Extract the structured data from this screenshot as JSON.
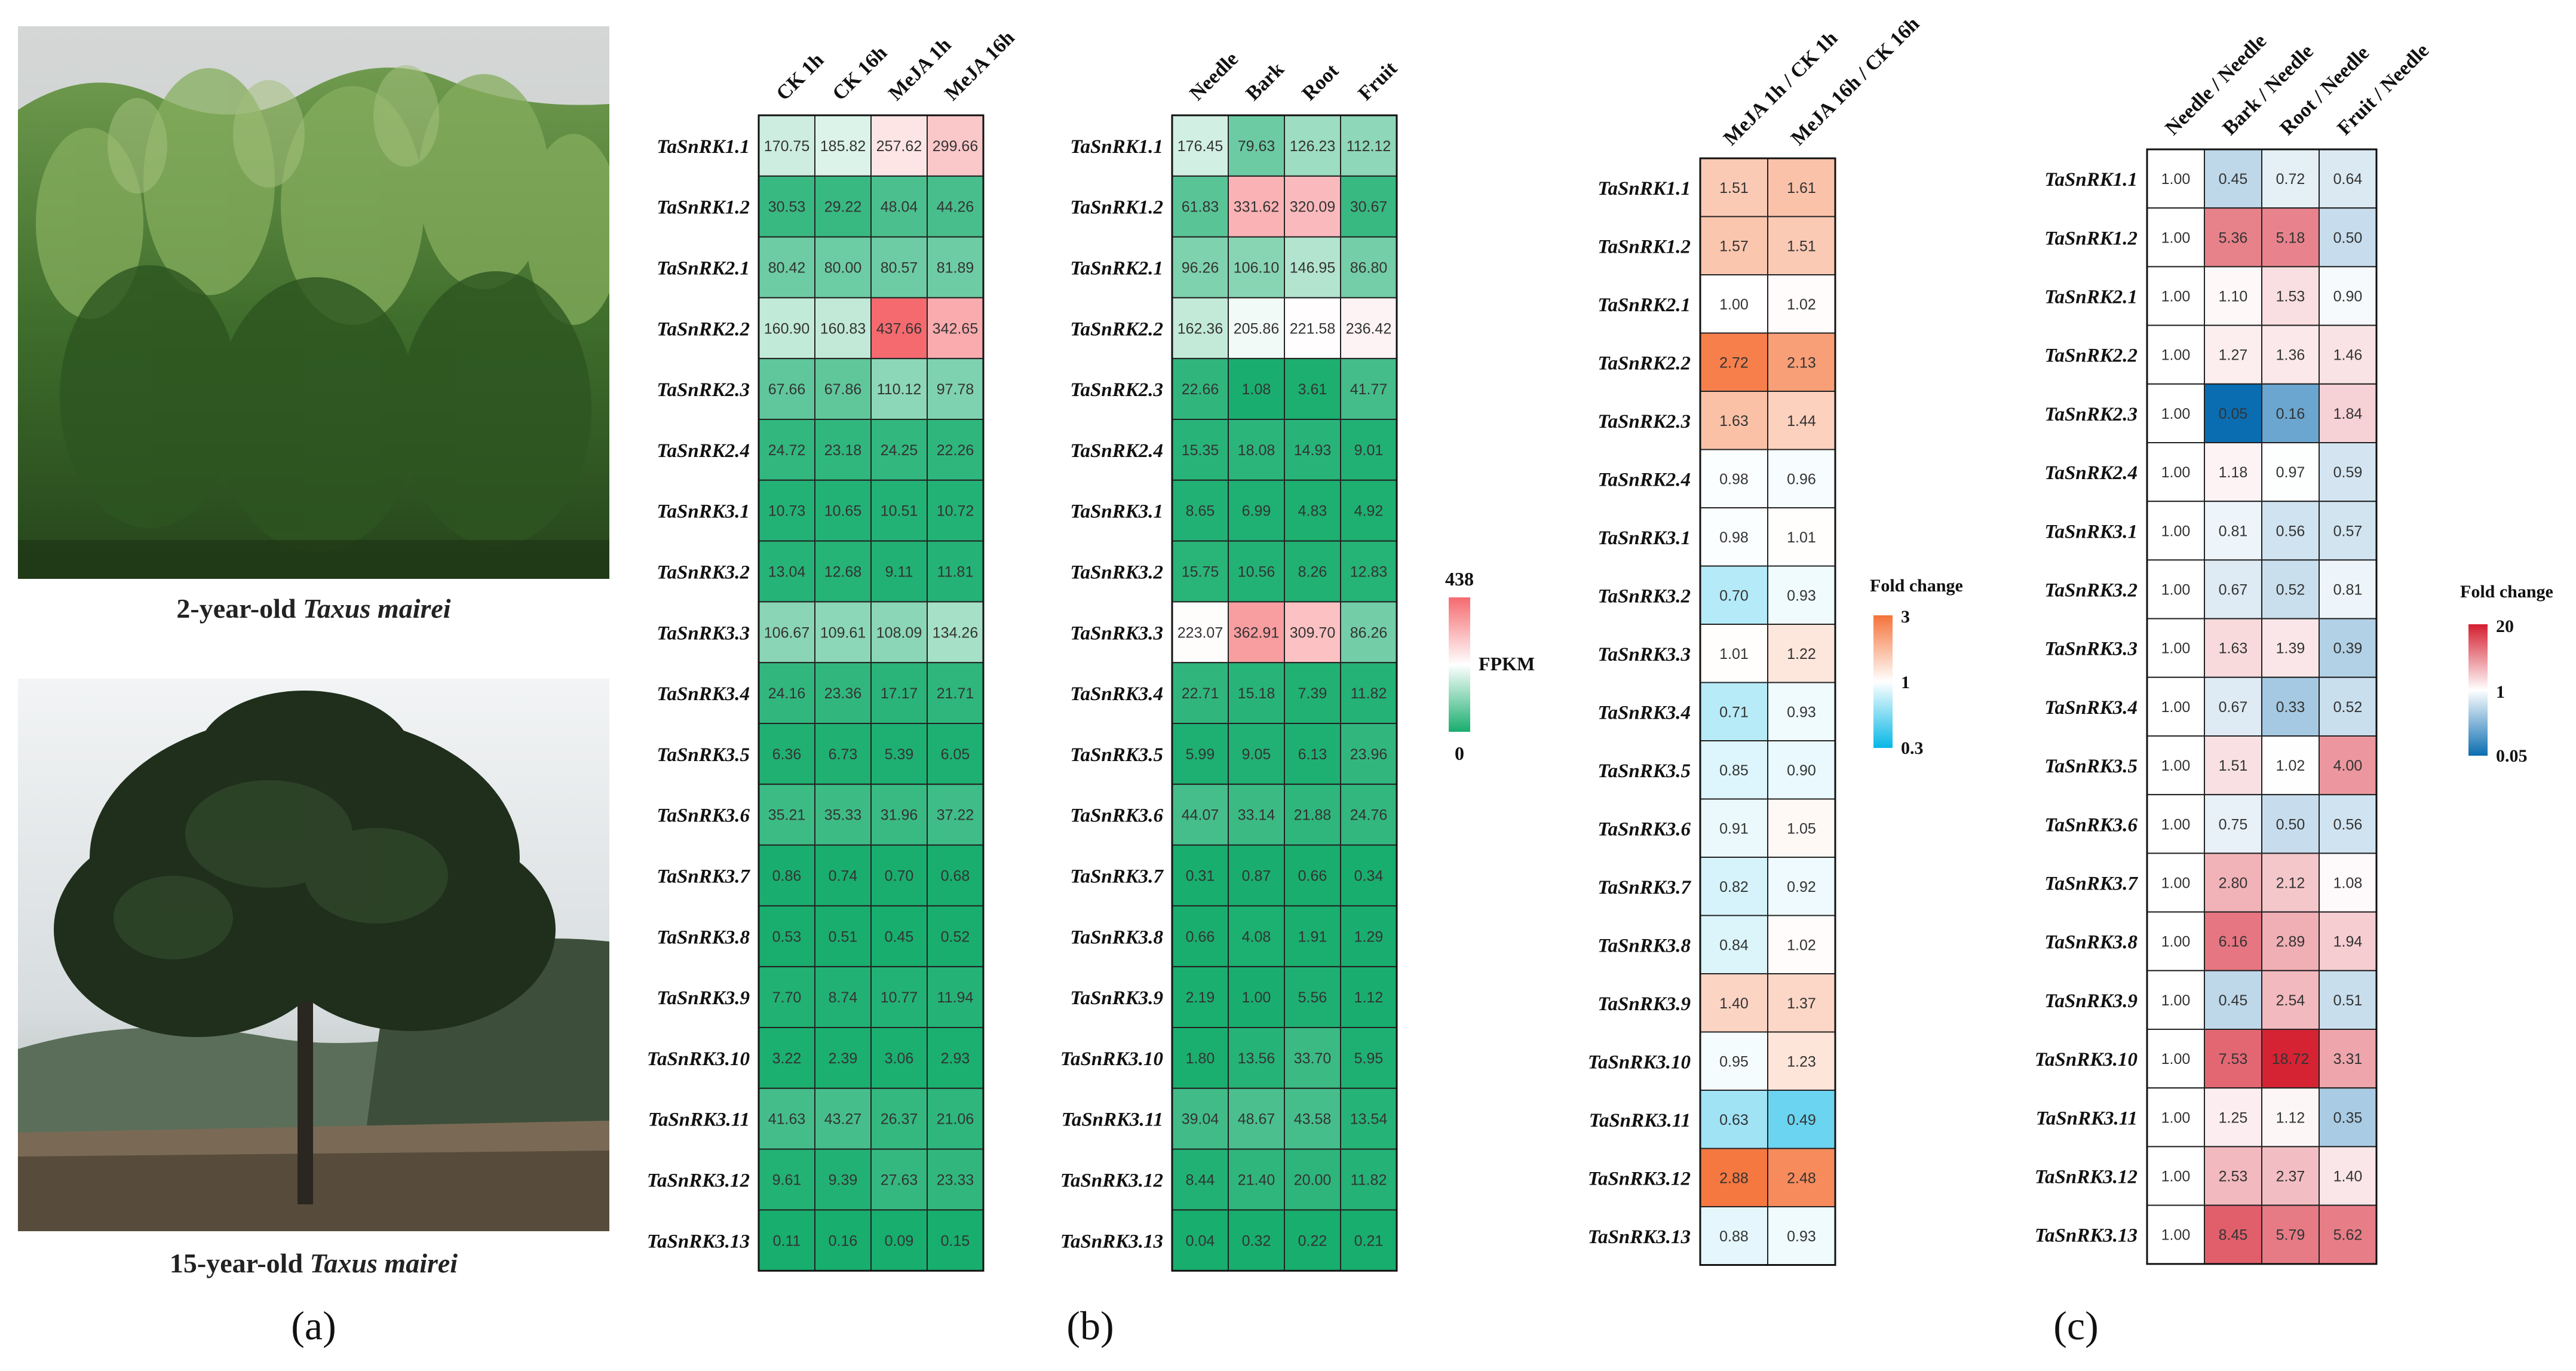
{
  "panel_a": {
    "label": "(a)",
    "photo_top": {
      "caption_prefix": "2-year-old ",
      "caption_species": "Taxus mairei"
    },
    "photo_bottom": {
      "caption_prefix": "15-year-old ",
      "caption_species": "Taxus mairei"
    }
  },
  "panel_b": {
    "label": "(b)"
  },
  "panel_c": {
    "label": "(c)"
  },
  "chart_data": [
    {
      "type": "heatmap",
      "id": "fpkm_mejA",
      "title": "",
      "columns": [
        "CK 1h",
        "CK 16h",
        "MeJA 1h",
        "MeJA 16h"
      ],
      "rows": [
        "TaSnRK1.1",
        "TaSnRK1.2",
        "TaSnRK2.1",
        "TaSnRK2.2",
        "TaSnRK2.3",
        "TaSnRK2.4",
        "TaSnRK3.1",
        "TaSnRK3.2",
        "TaSnRK3.3",
        "TaSnRK3.4",
        "TaSnRK3.5",
        "TaSnRK3.6",
        "TaSnRK3.7",
        "TaSnRK3.8",
        "TaSnRK3.9",
        "TaSnRK3.10",
        "TaSnRK3.11",
        "TaSnRK3.12",
        "TaSnRK3.13"
      ],
      "values": [
        [
          "170.75",
          "185.82",
          "257.62",
          "299.66"
        ],
        [
          "30.53",
          "29.22",
          "48.04",
          "44.26"
        ],
        [
          "80.42",
          "80.00",
          "80.57",
          "81.89"
        ],
        [
          "160.90",
          "160.83",
          "437.66",
          "342.65"
        ],
        [
          "67.66",
          "67.86",
          "110.12",
          "97.78"
        ],
        [
          "24.72",
          "23.18",
          "24.25",
          "22.26"
        ],
        [
          "10.73",
          "10.65",
          "10.51",
          "10.72"
        ],
        [
          "13.04",
          "12.68",
          "9.11",
          "11.81"
        ],
        [
          "106.67",
          "109.61",
          "108.09",
          "134.26"
        ],
        [
          "24.16",
          "23.36",
          "17.17",
          "21.71"
        ],
        [
          "6.36",
          "6.73",
          "5.39",
          "6.05"
        ],
        [
          "35.21",
          "35.33",
          "31.96",
          "37.22"
        ],
        [
          "0.86",
          "0.74",
          "0.70",
          "0.68"
        ],
        [
          "0.53",
          "0.51",
          "0.45",
          "0.52"
        ],
        [
          "7.70",
          "8.74",
          "10.77",
          "11.94"
        ],
        [
          "3.22",
          "2.39",
          "3.06",
          "2.93"
        ],
        [
          "41.63",
          "43.27",
          "26.37",
          "21.06"
        ],
        [
          "9.61",
          "9.39",
          "27.63",
          "23.33"
        ],
        [
          "0.11",
          "0.16",
          "0.09",
          "0.15"
        ]
      ]
    },
    {
      "type": "heatmap",
      "id": "fpkm_tissue",
      "title": "",
      "columns": [
        "Needle",
        "Bark",
        "Root",
        "Fruit"
      ],
      "rows": [
        "TaSnRK1.1",
        "TaSnRK1.2",
        "TaSnRK2.1",
        "TaSnRK2.2",
        "TaSnRK2.3",
        "TaSnRK2.4",
        "TaSnRK3.1",
        "TaSnRK3.2",
        "TaSnRK3.3",
        "TaSnRK3.4",
        "TaSnRK3.5",
        "TaSnRK3.6",
        "TaSnRK3.7",
        "TaSnRK3.8",
        "TaSnRK3.9",
        "TaSnRK3.10",
        "TaSnRK3.11",
        "TaSnRK3.12",
        "TaSnRK3.13"
      ],
      "values": [
        [
          "176.45",
          "79.63",
          "126.23",
          "112.12"
        ],
        [
          "61.83",
          "331.62",
          "320.09",
          "30.67"
        ],
        [
          "96.26",
          "106.10",
          "146.95",
          "86.80"
        ],
        [
          "162.36",
          "205.86",
          "221.58",
          "236.42"
        ],
        [
          "22.66",
          "1.08",
          "3.61",
          "41.77"
        ],
        [
          "15.35",
          "18.08",
          "14.93",
          "9.01"
        ],
        [
          "8.65",
          "6.99",
          "4.83",
          "4.92"
        ],
        [
          "15.75",
          "10.56",
          "8.26",
          "12.83"
        ],
        [
          "223.07",
          "362.91",
          "309.70",
          "86.26"
        ],
        [
          "22.71",
          "15.18",
          "7.39",
          "11.82"
        ],
        [
          "5.99",
          "9.05",
          "6.13",
          "23.96"
        ],
        [
          "44.07",
          "33.14",
          "21.88",
          "24.76"
        ],
        [
          "0.31",
          "0.87",
          "0.66",
          "0.34"
        ],
        [
          "0.66",
          "4.08",
          "1.91",
          "1.29"
        ],
        [
          "2.19",
          "1.00",
          "5.56",
          "1.12"
        ],
        [
          "1.80",
          "13.56",
          "33.70",
          "5.95"
        ],
        [
          "39.04",
          "48.67",
          "43.58",
          "13.54"
        ],
        [
          "8.44",
          "21.40",
          "20.00",
          "11.82"
        ],
        [
          "0.04",
          "0.32",
          "0.22",
          "0.21"
        ]
      ],
      "legend": {
        "title": "FPKM",
        "max_label": "438",
        "min_label": "0",
        "min": 0,
        "max": 438
      }
    },
    {
      "type": "heatmap",
      "id": "fc_mejA",
      "title": "",
      "columns": [
        "MeJA 1h / CK 1h",
        "MeJA 16h / CK 16h"
      ],
      "rows": [
        "TaSnRK1.1",
        "TaSnRK1.2",
        "TaSnRK2.1",
        "TaSnRK2.2",
        "TaSnRK2.3",
        "TaSnRK2.4",
        "TaSnRK3.1",
        "TaSnRK3.2",
        "TaSnRK3.3",
        "TaSnRK3.4",
        "TaSnRK3.5",
        "TaSnRK3.6",
        "TaSnRK3.7",
        "TaSnRK3.8",
        "TaSnRK3.9",
        "TaSnRK3.10",
        "TaSnRK3.11",
        "TaSnRK3.12",
        "TaSnRK3.13"
      ],
      "values": [
        [
          "1.51",
          "1.61"
        ],
        [
          "1.57",
          "1.51"
        ],
        [
          "1.00",
          "1.02"
        ],
        [
          "2.72",
          "2.13"
        ],
        [
          "1.63",
          "1.44"
        ],
        [
          "0.98",
          "0.96"
        ],
        [
          "0.98",
          "1.01"
        ],
        [
          "0.70",
          "0.93"
        ],
        [
          "1.01",
          "1.22"
        ],
        [
          "0.71",
          "0.93"
        ],
        [
          "0.85",
          "0.90"
        ],
        [
          "0.91",
          "1.05"
        ],
        [
          "0.82",
          "0.92"
        ],
        [
          "0.84",
          "1.02"
        ],
        [
          "1.40",
          "1.37"
        ],
        [
          "0.95",
          "1.23"
        ],
        [
          "0.63",
          "0.49"
        ],
        [
          "2.88",
          "2.48"
        ],
        [
          "0.88",
          "0.93"
        ]
      ],
      "legend": {
        "title": "Fold change",
        "max_label": "3",
        "mid_label": "1",
        "min_label": "0.3",
        "min": 0.3,
        "mid": 1,
        "max": 3
      }
    },
    {
      "type": "heatmap",
      "id": "fc_tissue",
      "title": "",
      "columns": [
        "Needle / Needle",
        "Bark / Needle",
        "Root / Needle",
        "Fruit / Needle"
      ],
      "rows": [
        "TaSnRK1.1",
        "TaSnRK1.2",
        "TaSnRK2.1",
        "TaSnRK2.2",
        "TaSnRK2.3",
        "TaSnRK2.4",
        "TaSnRK3.1",
        "TaSnRK3.2",
        "TaSnRK3.3",
        "TaSnRK3.4",
        "TaSnRK3.5",
        "TaSnRK3.6",
        "TaSnRK3.7",
        "TaSnRK3.8",
        "TaSnRK3.9",
        "TaSnRK3.10",
        "TaSnRK3.11",
        "TaSnRK3.12",
        "TaSnRK3.13"
      ],
      "values": [
        [
          "1.00",
          "0.45",
          "0.72",
          "0.64"
        ],
        [
          "1.00",
          "5.36",
          "5.18",
          "0.50"
        ],
        [
          "1.00",
          "1.10",
          "1.53",
          "0.90"
        ],
        [
          "1.00",
          "1.27",
          "1.36",
          "1.46"
        ],
        [
          "1.00",
          "0.05",
          "0.16",
          "1.84"
        ],
        [
          "1.00",
          "1.18",
          "0.97",
          "0.59"
        ],
        [
          "1.00",
          "0.81",
          "0.56",
          "0.57"
        ],
        [
          "1.00",
          "0.67",
          "0.52",
          "0.81"
        ],
        [
          "1.00",
          "1.63",
          "1.39",
          "0.39"
        ],
        [
          "1.00",
          "0.67",
          "0.33",
          "0.52"
        ],
        [
          "1.00",
          "1.51",
          "1.02",
          "4.00"
        ],
        [
          "1.00",
          "0.75",
          "0.50",
          "0.56"
        ],
        [
          "1.00",
          "2.80",
          "2.12",
          "1.08"
        ],
        [
          "1.00",
          "6.16",
          "2.89",
          "1.94"
        ],
        [
          "1.00",
          "0.45",
          "2.54",
          "0.51"
        ],
        [
          "1.00",
          "7.53",
          "18.72",
          "3.31"
        ],
        [
          "1.00",
          "1.25",
          "1.12",
          "0.35"
        ],
        [
          "1.00",
          "2.53",
          "2.37",
          "1.40"
        ],
        [
          "1.00",
          "8.45",
          "5.79",
          "5.62"
        ]
      ],
      "legend": {
        "title": "Fold change",
        "max_label": "20",
        "mid_label": "1",
        "min_label": "0.05",
        "min": 0.05,
        "mid": 1,
        "max": 20
      }
    }
  ],
  "colors": {
    "fpkm_low": "#18ae6e",
    "fpkm_mid": "#ffffff",
    "fpkm_high": "#f56a6f",
    "fc1_low": "#06b7e6",
    "fc1_mid": "#ffffff",
    "fc1_high": "#f5733a",
    "fc2_low": "#0b6db1",
    "fc2_mid": "#ffffff",
    "fc2_high": "#d51e2f"
  }
}
